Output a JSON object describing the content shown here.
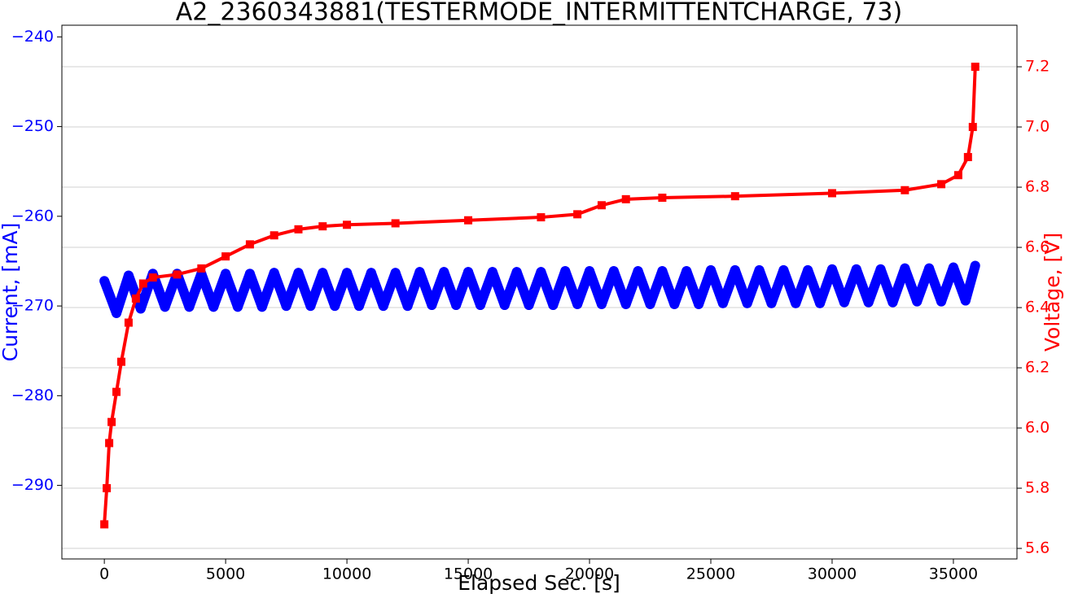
{
  "chart_data": {
    "type": "line",
    "title": "A2_2360343881(TESTERMODE_INTERMITTENTCHARGE, 73)",
    "xlabel": "Elapsed Sec. [s]",
    "ylabel": "Current, [mA]",
    "y2label": "Voltage, [V]",
    "xlim": [
      -1750,
      37620
    ],
    "xticks": [
      0,
      5000,
      10000,
      15000,
      20000,
      25000,
      30000,
      35000
    ],
    "ylim": [
      -298.2,
      -238.7
    ],
    "yticks": [
      {
        "value": -240,
        "label": "−240"
      },
      {
        "value": -250,
        "label": "−250"
      },
      {
        "value": -260,
        "label": "−260"
      },
      {
        "value": -270,
        "label": "−270"
      },
      {
        "value": -280,
        "label": "−280"
      },
      {
        "value": -290,
        "label": "−290"
      }
    ],
    "y2lim": [
      5.565,
      7.338
    ],
    "y2ticks": [
      5.6,
      5.8,
      {
        "value": 6,
        "label": "6.0"
      },
      6.2,
      6.4,
      6.6,
      6.8,
      {
        "value": 7,
        "label": "7.0"
      },
      7.2
    ],
    "grid": true,
    "series": [
      {
        "color": "#0000ff",
        "axis": "y",
        "x": [
          0,
          500,
          1000,
          1500,
          2000,
          2500,
          3000,
          3500,
          4000,
          4500,
          5000,
          5500,
          6000,
          6500,
          7000,
          7500,
          8000,
          8500,
          9000,
          9500,
          10000,
          10500,
          11000,
          11500,
          12000,
          12500,
          13000,
          13500,
          14000,
          14500,
          15000,
          15500,
          16000,
          16500,
          17000,
          17500,
          18000,
          18500,
          19000,
          19500,
          20000,
          20500,
          21000,
          21500,
          22000,
          22500,
          23000,
          23500,
          24000,
          24500,
          25000,
          25500,
          26000,
          26500,
          27000,
          27500,
          28000,
          28500,
          29000,
          29500,
          30000,
          30500,
          31000,
          31500,
          32000,
          32500,
          33000,
          33500,
          34000,
          34500,
          35000,
          35500,
          35900
        ],
        "values": [
          -267.2,
          -270.8,
          -266.6,
          -270.3,
          -266.4,
          -270.1,
          -266.4,
          -270.1,
          -266.4,
          -270.1,
          -266.4,
          -270.1,
          -266.4,
          -270.1,
          -266.3,
          -270.0,
          -266.3,
          -270.0,
          -266.3,
          -270.0,
          -266.3,
          -270.0,
          -266.3,
          -270.0,
          -266.3,
          -270.0,
          -266.2,
          -269.9,
          -266.2,
          -269.9,
          -266.2,
          -269.9,
          -266.2,
          -269.9,
          -266.2,
          -269.9,
          -266.2,
          -269.9,
          -266.1,
          -269.8,
          -266.1,
          -269.8,
          -266.1,
          -269.8,
          -266.1,
          -269.8,
          -266.1,
          -269.8,
          -266.1,
          -269.8,
          -266.0,
          -269.7,
          -266.0,
          -269.7,
          -266.0,
          -269.7,
          -266.0,
          -269.7,
          -266.0,
          -269.7,
          -265.9,
          -269.6,
          -265.9,
          -269.6,
          -265.9,
          -269.6,
          -265.8,
          -269.5,
          -265.8,
          -269.5,
          -265.7,
          -269.4,
          -265.5
        ]
      },
      {
        "color": "#ff0000",
        "axis": "y2",
        "x": [
          0,
          100,
          200,
          300,
          500,
          700,
          1000,
          1300,
          1600,
          2000,
          3000,
          4000,
          5000,
          6000,
          7000,
          8000,
          9000,
          10000,
          12000,
          15000,
          18000,
          19500,
          20500,
          21500,
          23000,
          26000,
          30000,
          33000,
          34500,
          35200,
          35600,
          35800,
          35900
        ],
        "values": [
          5.68,
          5.8,
          5.95,
          6.02,
          6.12,
          6.22,
          6.35,
          6.43,
          6.48,
          6.5,
          6.51,
          6.53,
          6.57,
          6.61,
          6.64,
          6.66,
          6.67,
          6.675,
          6.68,
          6.69,
          6.7,
          6.71,
          6.74,
          6.76,
          6.765,
          6.77,
          6.78,
          6.79,
          6.81,
          6.84,
          6.9,
          7.0,
          7.2
        ]
      }
    ]
  }
}
